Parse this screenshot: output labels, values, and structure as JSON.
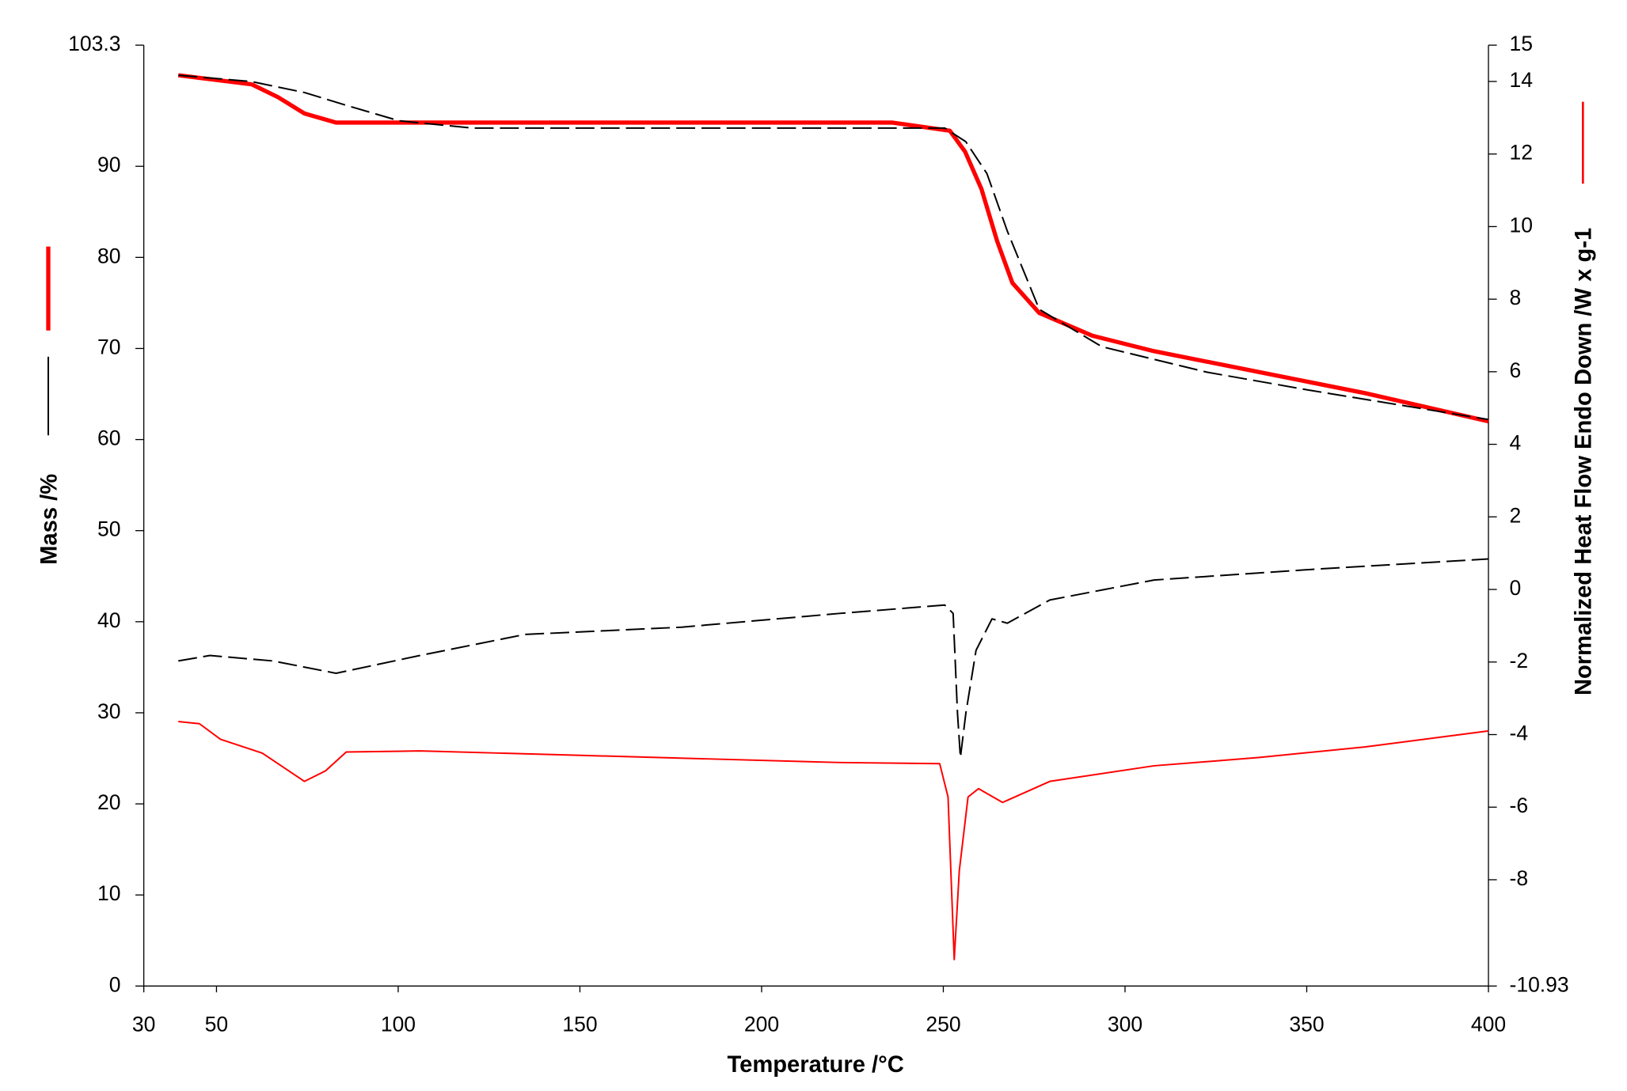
{
  "chart_data": {
    "type": "line",
    "x_label": "Temperature /°C",
    "y_label": "Mass /%",
    "y2_label": "Normalized Heat Flow Endo Down /W x g-1",
    "xlim": [
      30,
      400
    ],
    "xticks": [
      30,
      50,
      100,
      150,
      200,
      250,
      300,
      350,
      400
    ],
    "ylim": [
      0,
      103.3
    ],
    "yticks": [
      0,
      10,
      20,
      30,
      40,
      50,
      60,
      70,
      80,
      90,
      103.3
    ],
    "y2lim": [
      -10.93,
      15
    ],
    "y2ticks": [
      -10.93,
      -8,
      -6,
      -4,
      -2,
      0,
      2,
      4,
      6,
      8,
      10,
      12,
      14,
      15
    ],
    "grid": false,
    "series": [
      {
        "color": "#ff0000",
        "line_width": 4,
        "dashed": false,
        "axis": "y",
        "x": [
          39.5,
          49.6,
          59.7,
          66.9,
          74.2,
          82.9,
          106,
          236,
          251.8,
          256,
          260.5,
          264.8,
          269,
          276.4,
          291,
          308,
          337,
          366,
          400
        ],
        "values": [
          100.0,
          99.5,
          99.0,
          97.6,
          95.8,
          94.8,
          94.8,
          94.8,
          93.9,
          91.6,
          87.5,
          81.8,
          77.2,
          73.9,
          71.4,
          69.7,
          67.4,
          65.1,
          62.0
        ]
      },
      {
        "color": "#000000",
        "line_width": 1.5,
        "dashed": true,
        "axis": "y",
        "x": [
          39.5,
          59.7,
          74.2,
          85.7,
          100.2,
          120.4,
          250.4,
          256.2,
          262,
          267.6,
          276.4,
          293.6,
          322.5,
          351,
          400
        ],
        "values": [
          100.0,
          99.3,
          98.1,
          96.7,
          95.0,
          94.2,
          94.2,
          92.7,
          89.2,
          82.9,
          74.3,
          70.2,
          67.4,
          65.4,
          62.2
        ]
      },
      {
        "color": "#000000",
        "line_width": 1.5,
        "dashed": true,
        "axis": "y2",
        "x": [
          39.5,
          48.2,
          65.5,
          82.9,
          106,
          134.9,
          178,
          221.5,
          250.4,
          252.7,
          253.9,
          254.7,
          256.2,
          259,
          263.4,
          267.6,
          279.3,
          308,
          351,
          400
        ],
        "values": [
          -1.97,
          -1.82,
          -1.97,
          -2.31,
          -1.82,
          -1.24,
          -1.04,
          -0.66,
          -0.43,
          -0.66,
          -3.41,
          -4.63,
          -3.41,
          -1.68,
          -0.81,
          -0.93,
          -0.29,
          0.26,
          0.55,
          0.84
        ]
      },
      {
        "color": "#ff0000",
        "line_width": 1.5,
        "dashed": false,
        "axis": "y2",
        "x": [
          39.5,
          45.3,
          51.1,
          62.6,
          74.2,
          80,
          85.7,
          106,
          149.3,
          221.5,
          249,
          251.3,
          253,
          254.4,
          256.8,
          259.7,
          266.3,
          279.3,
          308,
          337,
          366,
          400
        ],
        "values": [
          -3.64,
          -3.7,
          -4.13,
          -4.51,
          -5.29,
          -5.0,
          -4.48,
          -4.45,
          -4.57,
          -4.77,
          -4.8,
          -5.72,
          -10.2,
          -7.75,
          -5.72,
          -5.49,
          -5.87,
          -5.29,
          -4.86,
          -4.63,
          -4.34,
          -3.9
        ]
      }
    ]
  }
}
